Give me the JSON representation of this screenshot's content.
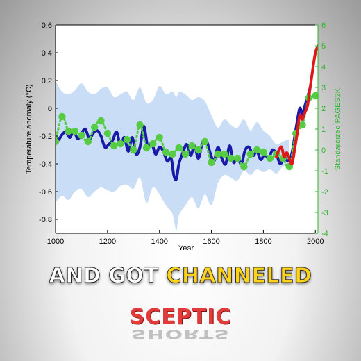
{
  "chart_data": {
    "type": "line",
    "title": "",
    "xlabel": "Year",
    "ylabel": "Temperature anomaly (°C)",
    "ylabel_right": "Standardized PAGES2K",
    "xlim": [
      1000,
      2010
    ],
    "ylim": [
      -0.9,
      0.6
    ],
    "ylim_right": [
      -4,
      6
    ],
    "x_ticks": [
      1000,
      1200,
      1400,
      1600,
      1800,
      2000
    ],
    "y_ticks": [
      0.6,
      0.4,
      0.2,
      0,
      -0.2,
      -0.4,
      -0.6,
      -0.8
    ],
    "y_ticks_right": [
      6,
      5,
      4,
      3,
      2,
      1,
      0,
      -1,
      -2,
      -3,
      -4
    ],
    "colors": {
      "reconstruction": "#1a1aa8",
      "instrumental": "#e01818",
      "pages2k": "#55cc44",
      "uncertainty": "#c6dcf6",
      "right_axis": "#2db52d"
    },
    "series": [
      {
        "key": "reconstruction",
        "x": [
          1000,
          1010,
          1025,
          1040,
          1055,
          1070,
          1085,
          1100,
          1115,
          1130,
          1145,
          1160,
          1175,
          1190,
          1205,
          1220,
          1235,
          1250,
          1265,
          1280,
          1295,
          1310,
          1325,
          1340,
          1355,
          1370,
          1385,
          1400,
          1415,
          1430,
          1445,
          1455,
          1465,
          1475,
          1490,
          1505,
          1520,
          1535,
          1550,
          1565,
          1580,
          1595,
          1610,
          1625,
          1640,
          1655,
          1670,
          1685,
          1700,
          1715,
          1730,
          1745,
          1760,
          1775,
          1790,
          1805,
          1820,
          1835,
          1850,
          1865,
          1880,
          1895,
          1910,
          1925,
          1940,
          1950,
          1960,
          1970,
          1980
        ],
        "values": [
          -0.2,
          -0.23,
          -0.19,
          -0.17,
          -0.21,
          -0.16,
          -0.22,
          -0.18,
          -0.15,
          -0.22,
          -0.18,
          -0.16,
          -0.2,
          -0.28,
          -0.26,
          -0.23,
          -0.17,
          -0.27,
          -0.21,
          -0.31,
          -0.21,
          -0.33,
          -0.28,
          -0.13,
          -0.28,
          -0.25,
          -0.33,
          -0.28,
          -0.31,
          -0.38,
          -0.36,
          -0.48,
          -0.51,
          -0.4,
          -0.32,
          -0.26,
          -0.34,
          -0.27,
          -0.36,
          -0.25,
          -0.23,
          -0.32,
          -0.38,
          -0.28,
          -0.36,
          -0.4,
          -0.27,
          -0.39,
          -0.35,
          -0.4,
          -0.3,
          -0.28,
          -0.34,
          -0.31,
          -0.37,
          -0.33,
          -0.36,
          -0.3,
          -0.33,
          -0.4,
          -0.35,
          -0.38,
          -0.32,
          -0.15,
          0.0,
          -0.05,
          0.02,
          0.08,
          0.15
        ]
      },
      {
        "key": "instrumental",
        "x": [
          1850,
          1860,
          1870,
          1880,
          1890,
          1900,
          1910,
          1920,
          1930,
          1940,
          1950,
          1960,
          1970,
          1980,
          1990,
          2000,
          2010
        ],
        "values": [
          -0.35,
          -0.3,
          -0.28,
          -0.35,
          -0.32,
          -0.36,
          -0.4,
          -0.3,
          -0.18,
          -0.05,
          -0.08,
          -0.03,
          0.02,
          0.15,
          0.28,
          0.4,
          0.45
        ]
      },
      {
        "key": "pages2k",
        "x": [
          1000,
          1025,
          1050,
          1075,
          1100,
          1125,
          1150,
          1175,
          1200,
          1225,
          1250,
          1275,
          1300,
          1325,
          1350,
          1375,
          1400,
          1425,
          1450,
          1475,
          1500,
          1525,
          1550,
          1575,
          1600,
          1625,
          1650,
          1675,
          1700,
          1725,
          1750,
          1775,
          1800,
          1825,
          1850,
          1875,
          1900,
          1925,
          1950,
          1975,
          2000
        ],
        "values": [
          0.4,
          1.6,
          0.9,
          0.9,
          0.7,
          0.4,
          1.1,
          1.4,
          0.8,
          0.2,
          0.3,
          0.5,
          0.0,
          1.2,
          0.1,
          0.3,
          0.6,
          -0.1,
          -0.2,
          0.1,
          -0.2,
          0.2,
          0.0,
          0.4,
          -0.6,
          -0.2,
          -0.2,
          -0.4,
          -0.4,
          -0.8,
          -0.2,
          0.0,
          -0.1,
          -0.4,
          -0.2,
          -0.4,
          -0.8,
          0.8,
          1.2,
          2.5,
          2.6
        ]
      }
    ],
    "uncertainty_band": {
      "x": [
        1000,
        1025,
        1050,
        1075,
        1100,
        1125,
        1150,
        1175,
        1200,
        1225,
        1250,
        1275,
        1300,
        1325,
        1350,
        1375,
        1400,
        1425,
        1450,
        1465,
        1475,
        1500,
        1525,
        1550,
        1575,
        1600,
        1625,
        1650,
        1675,
        1700,
        1725,
        1750,
        1775,
        1800,
        1825,
        1850,
        1875,
        1900
      ],
      "upper": [
        0.2,
        0.12,
        0.1,
        0.13,
        0.18,
        0.12,
        0.1,
        0.14,
        0.15,
        0.08,
        0.1,
        0.12,
        0.06,
        0.15,
        0.04,
        0.06,
        0.16,
        0.1,
        0.12,
        0.08,
        0.12,
        0.1,
        0.06,
        0.08,
        0.05,
        -0.05,
        -0.14,
        -0.08,
        -0.12,
        -0.14,
        -0.08,
        -0.16,
        -0.1,
        -0.16,
        -0.2,
        -0.26,
        -0.24,
        -0.22
      ],
      "lower": [
        -0.68,
        -0.63,
        -0.66,
        -0.6,
        -0.58,
        -0.64,
        -0.6,
        -0.57,
        -0.59,
        -0.6,
        -0.56,
        -0.55,
        -0.58,
        -0.5,
        -0.68,
        -0.57,
        -0.62,
        -0.7,
        -0.76,
        -0.88,
        -0.77,
        -0.7,
        -0.64,
        -0.72,
        -0.62,
        -0.7,
        -0.54,
        -0.48,
        -0.5,
        -0.52,
        -0.45,
        -0.48,
        -0.44,
        -0.46,
        -0.44,
        -0.47,
        -0.42,
        -0.4
      ]
    }
  },
  "caption": {
    "part1": "AND GOT ",
    "part2": "CHANNELED"
  },
  "logo": {
    "line1": "SCEPTIC",
    "line2": "SHORTS"
  }
}
